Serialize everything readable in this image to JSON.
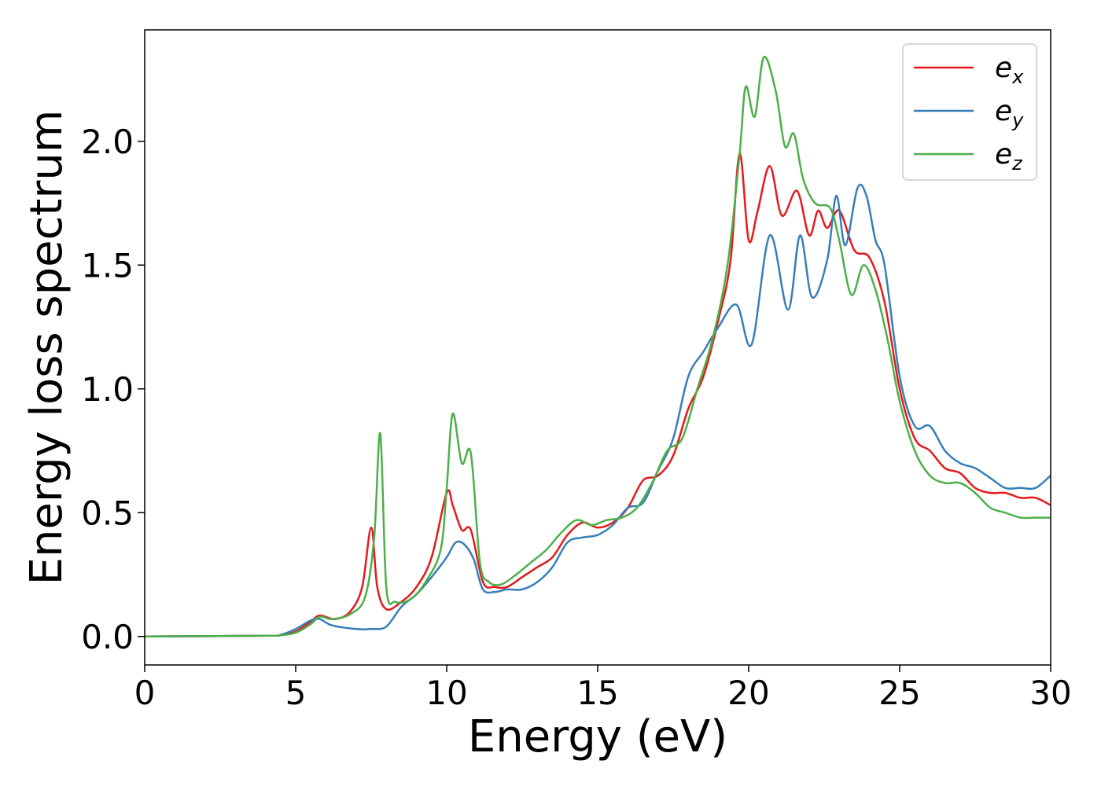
{
  "chart_data": {
    "type": "line",
    "xlabel": "Energy (eV)",
    "ylabel": "Energy loss spectrum",
    "xlim": [
      0,
      30
    ],
    "ylim": [
      -0.115,
      2.45
    ],
    "xticks": [
      0,
      5,
      10,
      15,
      20,
      25,
      30
    ],
    "yticks": [
      0.0,
      0.5,
      1.0,
      1.5,
      2.0
    ],
    "xtick_labels": [
      "0",
      "5",
      "10",
      "15",
      "20",
      "25",
      "30"
    ],
    "ytick_labels": [
      "0.0",
      "0.5",
      "1.0",
      "1.5",
      "2.0"
    ],
    "grid": false,
    "legend_position": "top-right",
    "series": [
      {
        "name": "e",
        "subscript": "x",
        "color": "#e41a1c",
        "x": [
          0,
          4,
          4.5,
          5,
          5.5,
          5.8,
          6.3,
          6.8,
          7.2,
          7.5,
          7.7,
          8.0,
          8.5,
          9.0,
          9.5,
          10.0,
          10.2,
          10.5,
          10.8,
          11.2,
          11.6,
          12.0,
          12.5,
          13.0,
          13.5,
          14.0,
          14.5,
          15.0,
          15.5,
          16.0,
          16.5,
          17.0,
          17.5,
          18.0,
          18.5,
          19.0,
          19.4,
          19.7,
          20.0,
          20.3,
          20.7,
          21.1,
          21.6,
          22.0,
          22.3,
          22.6,
          23.0,
          23.5,
          24.0,
          24.5,
          25.0,
          25.5,
          26.0,
          26.5,
          27.0,
          27.5,
          28.0,
          28.5,
          29.0,
          29.5,
          30.0
        ],
        "y": [
          0.0,
          0.003,
          0.006,
          0.02,
          0.06,
          0.085,
          0.07,
          0.1,
          0.2,
          0.44,
          0.2,
          0.11,
          0.14,
          0.2,
          0.32,
          0.58,
          0.53,
          0.43,
          0.43,
          0.22,
          0.2,
          0.2,
          0.24,
          0.28,
          0.32,
          0.41,
          0.46,
          0.44,
          0.46,
          0.52,
          0.63,
          0.65,
          0.73,
          0.92,
          1.05,
          1.28,
          1.52,
          1.95,
          1.6,
          1.72,
          1.9,
          1.7,
          1.8,
          1.62,
          1.72,
          1.65,
          1.72,
          1.56,
          1.53,
          1.35,
          1.0,
          0.8,
          0.75,
          0.68,
          0.66,
          0.6,
          0.58,
          0.58,
          0.56,
          0.56,
          0.53
        ]
      },
      {
        "name": "e",
        "subscript": "y",
        "color": "#377eb8",
        "x": [
          0,
          4,
          4.5,
          5,
          5.5,
          5.8,
          6.2,
          7.0,
          7.5,
          8.0,
          8.5,
          9.0,
          9.5,
          10.0,
          10.3,
          10.6,
          10.9,
          11.2,
          11.6,
          12.0,
          12.5,
          13.0,
          13.5,
          14.0,
          14.5,
          15.0,
          15.5,
          16.0,
          16.5,
          17.0,
          17.5,
          18.0,
          18.5,
          19.0,
          19.6,
          20.1,
          20.7,
          21.3,
          21.7,
          22.1,
          22.6,
          22.9,
          23.2,
          23.6,
          23.9,
          24.2,
          24.5,
          25.0,
          25.5,
          26.0,
          26.5,
          27.0,
          27.5,
          28.0,
          28.5,
          29.0,
          29.5,
          30.0
        ],
        "y": [
          0.0,
          0.003,
          0.007,
          0.03,
          0.065,
          0.07,
          0.045,
          0.03,
          0.03,
          0.04,
          0.12,
          0.17,
          0.24,
          0.32,
          0.38,
          0.37,
          0.31,
          0.19,
          0.18,
          0.19,
          0.19,
          0.22,
          0.28,
          0.38,
          0.4,
          0.41,
          0.45,
          0.52,
          0.54,
          0.67,
          0.8,
          1.05,
          1.15,
          1.25,
          1.34,
          1.18,
          1.62,
          1.32,
          1.62,
          1.37,
          1.52,
          1.78,
          1.58,
          1.81,
          1.78,
          1.6,
          1.5,
          1.05,
          0.85,
          0.85,
          0.75,
          0.7,
          0.68,
          0.64,
          0.6,
          0.6,
          0.6,
          0.65
        ]
      },
      {
        "name": "e",
        "subscript": "z",
        "color": "#4daf4a",
        "x": [
          0,
          4,
          4.5,
          5,
          5.5,
          5.8,
          6.2,
          6.8,
          7.3,
          7.6,
          7.8,
          8.0,
          8.3,
          8.8,
          9.3,
          9.8,
          10.0,
          10.2,
          10.5,
          10.8,
          11.1,
          11.4,
          11.8,
          12.3,
          12.8,
          13.3,
          13.8,
          14.3,
          14.8,
          15.3,
          15.8,
          16.3,
          16.8,
          17.3,
          17.8,
          18.3,
          18.8,
          19.3,
          19.7,
          19.9,
          20.2,
          20.5,
          20.9,
          21.2,
          21.5,
          21.8,
          22.2,
          22.7,
          23.0,
          23.4,
          23.8,
          24.2,
          24.6,
          25.0,
          25.5,
          26.0,
          26.5,
          27.0,
          27.5,
          28.0,
          28.5,
          29.0,
          29.5,
          30.0
        ],
        "y": [
          0.0,
          0.003,
          0.005,
          0.015,
          0.05,
          0.08,
          0.07,
          0.09,
          0.16,
          0.4,
          0.82,
          0.2,
          0.14,
          0.15,
          0.22,
          0.35,
          0.6,
          0.9,
          0.7,
          0.74,
          0.3,
          0.22,
          0.21,
          0.25,
          0.3,
          0.35,
          0.42,
          0.47,
          0.45,
          0.47,
          0.48,
          0.52,
          0.62,
          0.75,
          0.8,
          1.0,
          1.2,
          1.5,
          1.95,
          2.22,
          2.1,
          2.34,
          2.2,
          1.98,
          2.03,
          1.85,
          1.75,
          1.73,
          1.6,
          1.38,
          1.5,
          1.4,
          1.2,
          0.95,
          0.75,
          0.65,
          0.62,
          0.62,
          0.58,
          0.52,
          0.5,
          0.48,
          0.48,
          0.48
        ]
      }
    ]
  }
}
